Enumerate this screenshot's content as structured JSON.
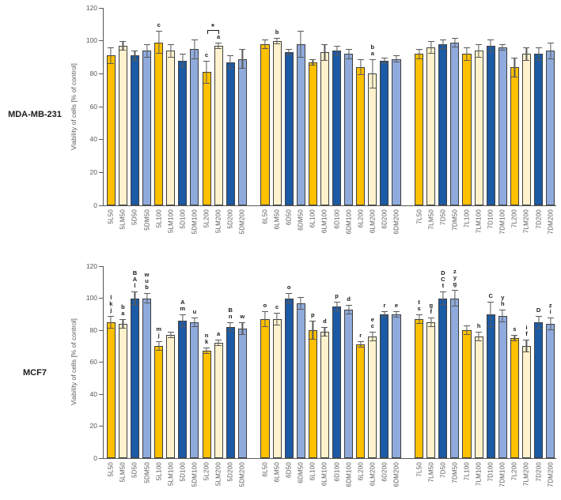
{
  "figure_colors": {
    "bar_gold": "#FFC000",
    "bar_cream": "#FFF2CC",
    "bar_dark_blue": "#1B5AA5",
    "bar_light_blue": "#8FAADC",
    "bar_border": "#3F3F3F",
    "axis_gray": "#595959"
  },
  "chart_data": [
    {
      "type": "bar",
      "title": "MDA-MB-231",
      "ylabel": "Viability of cells [% of control]",
      "ylim": [
        0,
        120
      ],
      "yticks": [
        0,
        20,
        40,
        60,
        80,
        100,
        120
      ],
      "grid": false,
      "legend": "none",
      "bar_colors_cycle": [
        "#FFC000",
        "#FFF2CC",
        "#1B5AA5",
        "#8FAADC"
      ],
      "groups": [
        {
          "categories": [
            "5L50",
            "5LM50",
            "5D50",
            "5DM50",
            "5L100",
            "5LM100",
            "5D100",
            "5DM100",
            "5L200",
            "5LM200",
            "5D200",
            "5DM200"
          ],
          "values": [
            91,
            97,
            91,
            94,
            99,
            94,
            88,
            95,
            81,
            97,
            87,
            89
          ],
          "errors": [
            5,
            3,
            3,
            4,
            7,
            4,
            4,
            6,
            7,
            2,
            4,
            6
          ],
          "letters": [
            [],
            [],
            [],
            [],
            [
              "c"
            ],
            [],
            [],
            [],
            [
              "c"
            ],
            [
              "a"
            ],
            [],
            []
          ]
        },
        {
          "categories": [
            "6L50",
            "6LM50",
            "6D50",
            "6DM50",
            "6L100",
            "6LM100",
            "6D100",
            "6DM100",
            "6L200",
            "6LM200",
            "6D200",
            "6DM200"
          ],
          "values": [
            98,
            100,
            93,
            98,
            87,
            93,
            94,
            92,
            84,
            80,
            88,
            89
          ],
          "errors": [
            3,
            2,
            2,
            8,
            2,
            5,
            3,
            3,
            5,
            9,
            2,
            2
          ],
          "letters": [
            [],
            [
              "b"
            ],
            [],
            [],
            [],
            [],
            [],
            [],
            [],
            [
              "b",
              "a"
            ],
            [],
            []
          ]
        },
        {
          "categories": [
            "7L50",
            "7LM50",
            "7D50",
            "7DM50",
            "7L100",
            "7LM100",
            "7D100",
            "7DM100",
            "7L200",
            "7LM200",
            "7D200",
            "7DM200"
          ],
          "values": [
            92,
            96,
            98,
            99,
            92,
            94,
            97,
            96,
            84,
            92,
            92,
            94
          ],
          "errors": [
            3,
            4,
            3,
            3,
            4,
            4,
            4,
            2,
            6,
            4,
            4,
            5
          ],
          "letters": [
            [],
            [],
            [],
            [],
            [],
            [],
            [],
            [],
            [],
            [],
            [],
            []
          ]
        }
      ],
      "significance": {
        "group": 0,
        "from": 8,
        "to": 9,
        "label": "*",
        "y": 104
      }
    },
    {
      "type": "bar",
      "title": "MCF7",
      "ylabel": "Viability of cells [% of control]",
      "ylim": [
        0,
        120
      ],
      "yticks": [
        0,
        20,
        40,
        60,
        80,
        100,
        120
      ],
      "grid": false,
      "legend": "none",
      "bar_colors_cycle": [
        "#FFC000",
        "#FFF2CC",
        "#1B5AA5",
        "#8FAADC"
      ],
      "groups": [
        {
          "categories": [
            "5L50",
            "5LM50",
            "5D50",
            "5DM50",
            "5L100",
            "5LM100",
            "5D100",
            "5DM100",
            "5L200",
            "5LM200",
            "5D200",
            "5DM200"
          ],
          "values": [
            85,
            84,
            100,
            100,
            70,
            77,
            86,
            85,
            67,
            72,
            82,
            81
          ],
          "errors": [
            4,
            3,
            4,
            3,
            3,
            2,
            4,
            3,
            2,
            2,
            3,
            4
          ],
          "letters": [
            [
              "l",
              "k",
              "j"
            ],
            [
              "b",
              "a"
            ],
            [
              "B",
              "A",
              "l"
            ],
            [
              "w",
              "u",
              "b"
            ],
            [
              "m",
              "j"
            ],
            [],
            [
              "A",
              "m"
            ],
            [
              "u"
            ],
            [
              "n",
              "k"
            ],
            [
              "a"
            ],
            [
              "B",
              "n"
            ],
            [
              "w"
            ]
          ]
        },
        {
          "categories": [
            "6L50",
            "6LM50",
            "6D50",
            "6DM50",
            "6L100",
            "6LM100",
            "6D100",
            "6DM100",
            "6L200",
            "6LM200",
            "6D200",
            "6DM200"
          ],
          "values": [
            87,
            87,
            100,
            97,
            80,
            79,
            95,
            93,
            71,
            76,
            90,
            90
          ],
          "errors": [
            5,
            4,
            3,
            4,
            6,
            3,
            3,
            3,
            2,
            3,
            2,
            2
          ],
          "letters": [
            [
              "o"
            ],
            [
              "c"
            ],
            [
              "o"
            ],
            [],
            [
              "p"
            ],
            [
              "d"
            ],
            [
              "p"
            ],
            [
              "d"
            ],
            [
              "r"
            ],
            [
              "e",
              "c"
            ],
            [
              "r"
            ],
            [
              "e"
            ]
          ]
        },
        {
          "categories": [
            "7L50",
            "7LM50",
            "7D50",
            "7DM50",
            "7L100",
            "7LM100",
            "7D100",
            "7DM100",
            "7L200",
            "7LM200",
            "7D200",
            "7DM200"
          ],
          "values": [
            87,
            85,
            100,
            100,
            80,
            76,
            90,
            89,
            75,
            70,
            85,
            84
          ],
          "errors": [
            3,
            3,
            4,
            5,
            3,
            3,
            8,
            4,
            2,
            4,
            4,
            4
          ],
          "letters": [
            [
              "t",
              "s"
            ],
            [
              "g",
              "f"
            ],
            [
              "D",
              "C",
              "t"
            ],
            [
              "z",
              "y",
              "g"
            ],
            [],
            [
              "h"
            ],
            [
              "C"
            ],
            [
              "y",
              "h"
            ],
            [
              "s"
            ],
            [
              "i",
              "f"
            ],
            [
              "D"
            ],
            [
              "z",
              "i"
            ]
          ]
        }
      ],
      "significance": null
    }
  ]
}
